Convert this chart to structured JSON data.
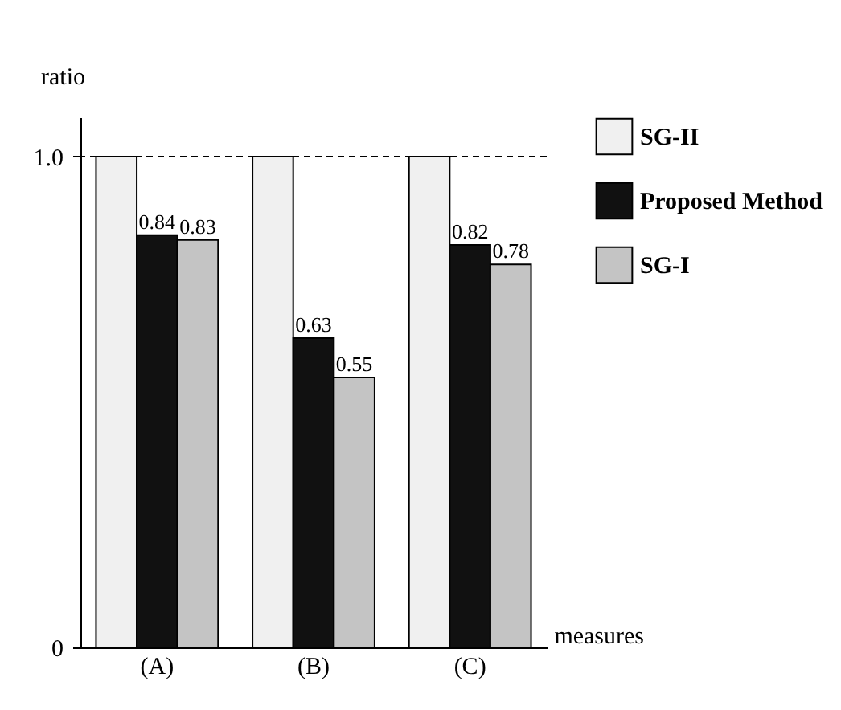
{
  "chart_data": {
    "type": "bar",
    "xlabel": "measures",
    "ylabel": "ratio",
    "categories": [
      "(A)",
      "(B)",
      "(C)"
    ],
    "series": [
      {
        "name": "SG-II",
        "color": "#f0f0f0",
        "values": [
          1.0,
          1.0,
          1.0
        ]
      },
      {
        "name": "Proposed Method",
        "color": "#111111",
        "values": [
          0.84,
          0.63,
          0.82
        ],
        "value_labels": [
          "0.84",
          "0.63",
          "0.82"
        ]
      },
      {
        "name": "SG-I",
        "color": "#c4c4c4",
        "values": [
          0.83,
          0.55,
          0.78
        ],
        "value_labels": [
          "0.83",
          "0.55",
          "0.78"
        ]
      }
    ],
    "ylim": [
      0,
      1.08
    ],
    "yticks": [
      0,
      {
        "value": 1,
        "label": "1.0"
      }
    ],
    "grid": false,
    "legend": "right",
    "ref_lines": [
      {
        "axis": "y",
        "value": 1,
        "line_style": "dashed"
      }
    ]
  }
}
